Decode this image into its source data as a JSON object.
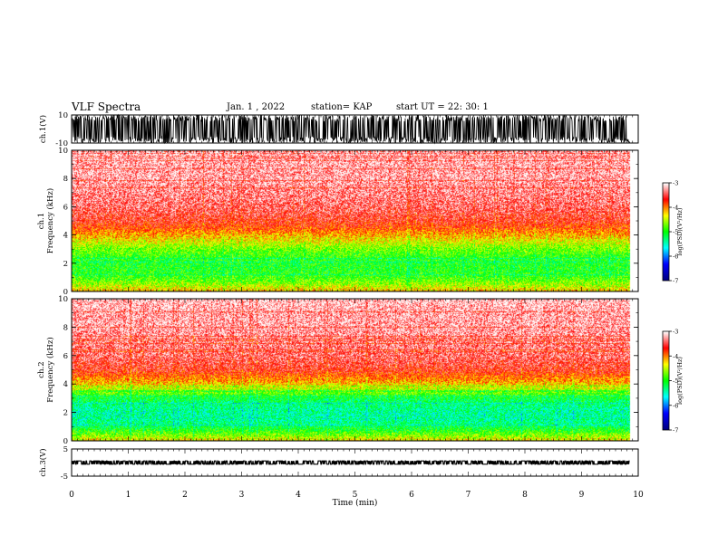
{
  "header": {
    "title": "VLF Spectra",
    "date": "Jan. 1 , 2022",
    "station": "station= KAP",
    "start": "start UT =  22: 30: 1"
  },
  "chart_data": [
    {
      "type": "line",
      "name": "ch1-waveform",
      "ylabel": "ch.1(V)",
      "ylim": [
        -10,
        10
      ],
      "yticks": [
        "10",
        "-10"
      ],
      "xlim": [
        0,
        10
      ],
      "data_extent_min": 9.85,
      "amplitude_range": [
        -10,
        10
      ]
    },
    {
      "type": "heatmap",
      "name": "ch1-spectrogram",
      "ylabel_lines": [
        "ch.1",
        "Frequency (kHz)"
      ],
      "ylim": [
        0,
        10
      ],
      "yticks": [
        "0",
        "2",
        "4",
        "6",
        "8",
        "10"
      ],
      "xlim": [
        0,
        10
      ],
      "data_extent_min": 9.85,
      "profile_freq_khz": [
        0,
        0.5,
        1,
        1.5,
        2,
        2.5,
        3,
        3.5,
        4,
        4.5,
        5,
        6,
        7,
        8,
        9,
        10
      ],
      "profile_log_psd": [
        -4.2,
        -4.6,
        -4.9,
        -5.0,
        -5.0,
        -4.9,
        -4.7,
        -4.4,
        -4.1,
        -3.8,
        -3.6,
        -3.4,
        -3.3,
        -3.2,
        -3.2,
        -3.1
      ],
      "colorbar": {
        "label": "log(PSD)(V²/Hz)",
        "range": [
          -7,
          -3
        ],
        "ticks": [
          "-3",
          "-4",
          "-5",
          "-6",
          "-7"
        ]
      }
    },
    {
      "type": "heatmap",
      "name": "ch2-spectrogram",
      "ylabel_lines": [
        "ch.2",
        "Frequency (kHz)"
      ],
      "ylim": [
        0,
        10
      ],
      "yticks": [
        "0",
        "2",
        "4",
        "6",
        "8",
        "10"
      ],
      "xlim": [
        0,
        10
      ],
      "data_extent_min": 9.85,
      "profile_freq_khz": [
        0,
        0.5,
        1,
        1.5,
        2,
        2.5,
        3,
        3.5,
        4,
        4.5,
        5,
        6,
        7,
        8,
        9,
        10
      ],
      "profile_log_psd": [
        -4.3,
        -4.8,
        -5.2,
        -5.4,
        -5.4,
        -5.3,
        -5.1,
        -4.6,
        -4.2,
        -3.9,
        -3.6,
        -3.4,
        -3.3,
        -3.2,
        -3.2,
        -3.1
      ],
      "colorbar": {
        "label": "log(PSD)(V²/Hz)",
        "range": [
          -7,
          -3
        ],
        "ticks": [
          "-3",
          "-4",
          "-5",
          "-6",
          "-7"
        ]
      }
    },
    {
      "type": "line",
      "name": "ch3-waveform",
      "ylabel": "ch.3(V)",
      "ylim": [
        -5,
        5
      ],
      "yticks": [
        "5",
        "-5"
      ],
      "xlim": [
        0,
        10
      ],
      "data_extent_min": 9.85,
      "amplitude_range": [
        -0.6,
        0.6
      ]
    }
  ],
  "xaxis": {
    "label": "Time (min)",
    "ticks": [
      "0",
      "1",
      "2",
      "3",
      "4",
      "5",
      "6",
      "7",
      "8",
      "9",
      "10"
    ]
  },
  "colors": {
    "colormap": [
      "#000080",
      "#0000ff",
      "#00ffff",
      "#00ff00",
      "#ffff00",
      "#ff0000",
      "#ffffff"
    ],
    "trace": "#000000"
  }
}
